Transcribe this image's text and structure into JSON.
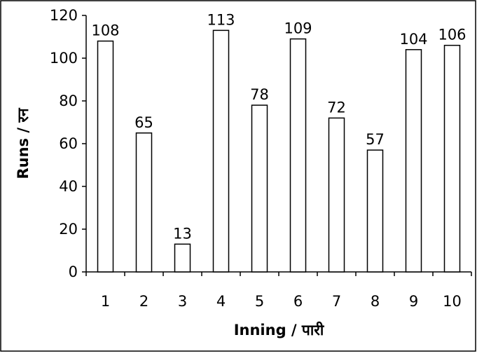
{
  "chart_data": {
    "type": "bar",
    "categories": [
      "1",
      "2",
      "3",
      "4",
      "5",
      "6",
      "7",
      "8",
      "9",
      "10"
    ],
    "values": [
      108,
      65,
      13,
      113,
      78,
      109,
      72,
      57,
      104,
      106
    ],
    "xlabel": "Inning / पारी",
    "ylabel": "Runs / रन",
    "ylim": [
      0,
      120
    ],
    "yticks": [
      0,
      20,
      40,
      60,
      80,
      100,
      120
    ],
    "grid": false,
    "legend": "none",
    "bar_fill": "#ffffff",
    "bar_stroke": "#000000"
  }
}
